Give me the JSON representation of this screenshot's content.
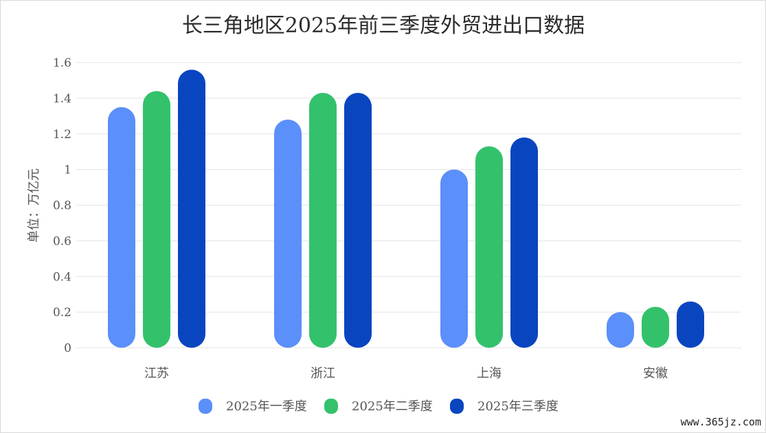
{
  "chart_data": {
    "type": "bar",
    "title": "长三角地区2025年前三季度外贸进出口数据",
    "ylabel": "单位：万亿元",
    "xlabel": "",
    "ylim": [
      0,
      1.6
    ],
    "yticks": [
      0,
      0.2,
      0.4,
      0.6,
      0.8,
      1,
      1.2,
      1.4,
      1.6
    ],
    "ytick_labels": [
      "0",
      "0.2",
      "0.4",
      "0.6",
      "0.8",
      "1",
      "1.2",
      "1.4",
      "1.6"
    ],
    "categories": [
      "江苏",
      "浙江",
      "上海",
      "安徽"
    ],
    "series": [
      {
        "name": "2025年一季度",
        "color": "#5b8ff9",
        "values": [
          1.35,
          1.28,
          1.0,
          0.2
        ]
      },
      {
        "name": "2025年二季度",
        "color": "#33c26b",
        "values": [
          1.44,
          1.43,
          1.13,
          0.23
        ]
      },
      {
        "name": "2025年三季度",
        "color": "#0a45c0",
        "values": [
          1.56,
          1.43,
          1.18,
          0.26
        ]
      }
    ],
    "grid": true,
    "legend_position": "bottom-center"
  },
  "watermark": "www.365jz.com"
}
